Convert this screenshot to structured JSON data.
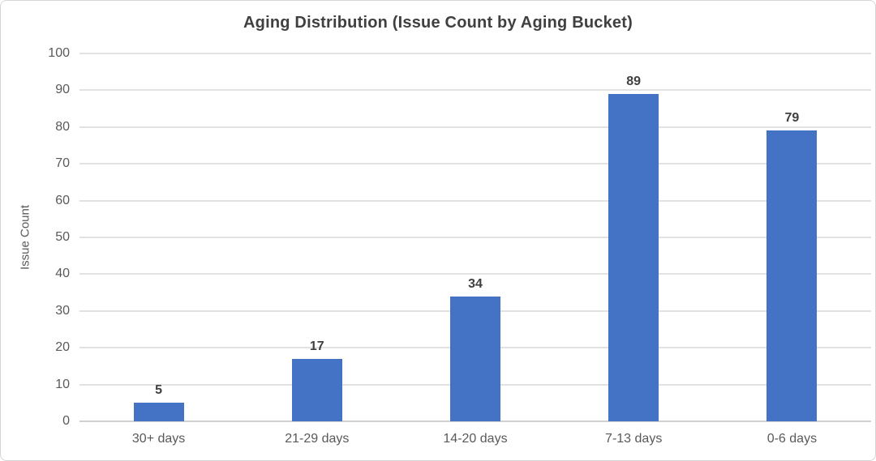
{
  "chart_data": {
    "type": "bar",
    "title": "Aging Distribution (Issue Count by Aging Bucket)",
    "categories": [
      "30+ days",
      "21-29 days",
      "14-20 days",
      "7-13 days",
      "0-6 days"
    ],
    "values": [
      5,
      17,
      34,
      89,
      79
    ],
    "xlabel": "",
    "ylabel": "Issue Count",
    "ylim": [
      0,
      100
    ],
    "yticks": [
      0,
      10,
      20,
      30,
      40,
      50,
      60,
      70,
      80,
      90,
      100
    ],
    "grid": "horizontal-only",
    "legend": "none",
    "data_labels": [
      5,
      17,
      34,
      89,
      79
    ]
  },
  "colors": {
    "bar": "#4472C4",
    "gridline": "#E2E2E2",
    "axis_line": "#D0D0D0",
    "title_text": "#404040",
    "tick_text": "#595959",
    "data_label_text": "#404040",
    "background": "#FFFFFF",
    "frame_border": "#D5D5D5"
  }
}
